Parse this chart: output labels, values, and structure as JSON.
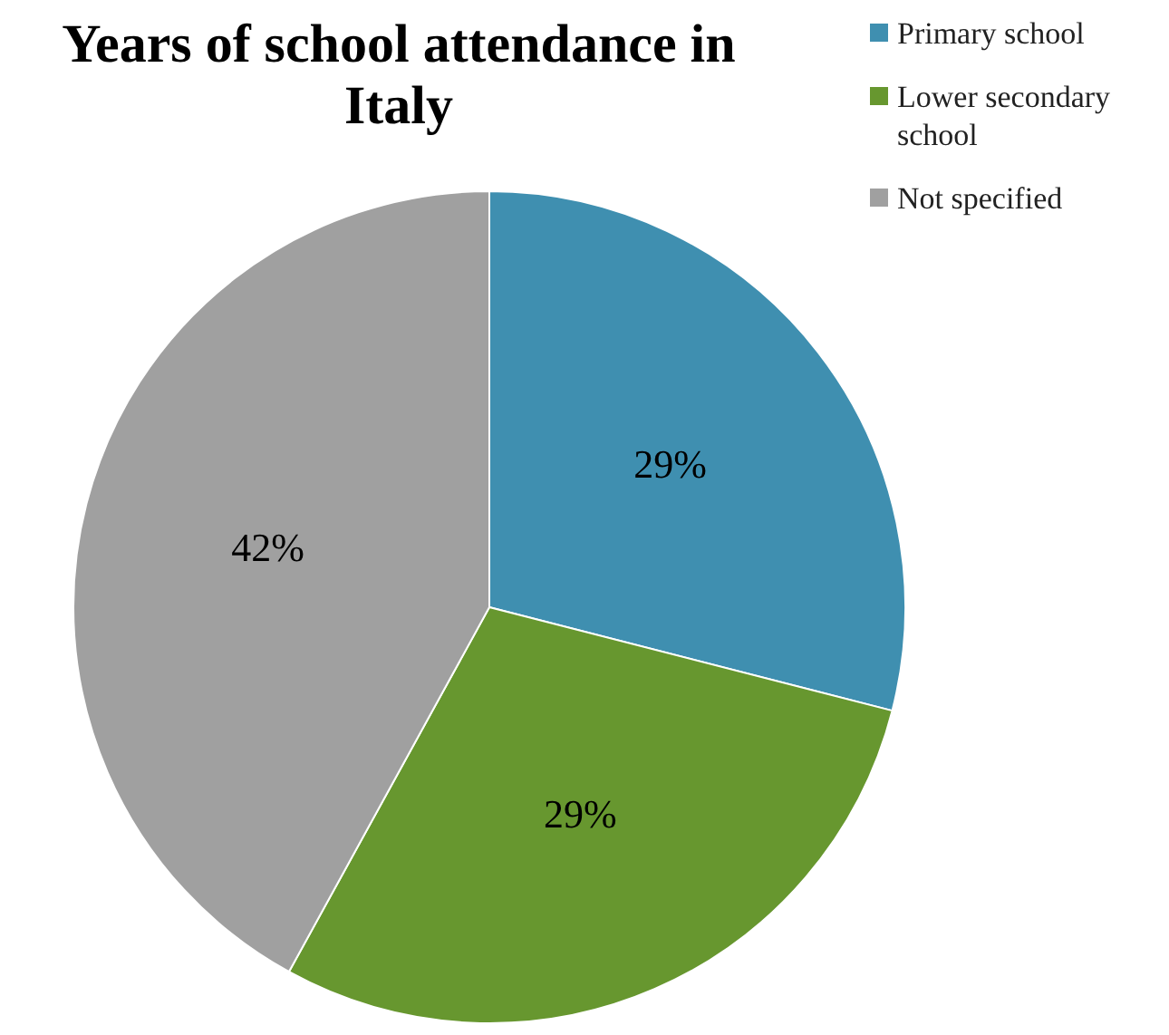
{
  "chart_data": {
    "type": "pie",
    "title": "Years of school attendance in Italy",
    "categories": [
      "Primary school",
      "Lower secondary school",
      "Not specified"
    ],
    "values": [
      29,
      29,
      42
    ],
    "colors": [
      "#3f8fb0",
      "#67972f",
      "#a0a0a0"
    ],
    "value_labels": [
      "29%",
      "29%",
      "42%"
    ],
    "legend": "top right"
  }
}
